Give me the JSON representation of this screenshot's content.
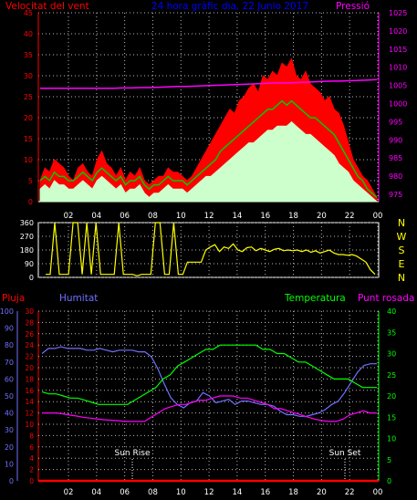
{
  "colors": {
    "background": "#000000",
    "grid": "#b8b8b8",
    "wind_speed": "#ff0000",
    "wind_avg": "#00cc00",
    "wind_min": "#ccffcc",
    "pressure": "#ff00ff",
    "direction": "#ffff00",
    "rain": "#ff0000",
    "humidity": "#7070ff",
    "temperature": "#00ff00",
    "dew_point": "#ff00ff",
    "sun_marker": "#ffffff",
    "text_title": "#0000ff",
    "text_left_red": "#ff0000",
    "text_right_magenta": "#ff00ff",
    "text_dir": "#ffff00"
  },
  "chart_data": [
    {
      "type": "area",
      "id": "wind",
      "title": "24 hora gràfic dia, 22 Junio 2017",
      "left_axis_label": "Velocitat del vent",
      "right_axis_label": "Pressió",
      "x_tick_labels": [
        "02",
        "04",
        "06",
        "08",
        "10",
        "12",
        "14",
        "16",
        "18",
        "20",
        "22",
        "00"
      ],
      "y_left_ticks": [
        "45",
        "40",
        "35",
        "30",
        "25",
        "20",
        "15",
        "10",
        "5",
        "0"
      ],
      "y_left_range": [
        0,
        45
      ],
      "y_right_ticks": [
        "1025",
        "1020",
        "1015",
        "1010",
        "1005",
        "1000",
        "995",
        "990",
        "985",
        "980",
        "975"
      ],
      "y_right_range": [
        972.5,
        1025
      ],
      "grid": true,
      "series": [
        {
          "key": "gust",
          "values": [
            5,
            8,
            7,
            10,
            9,
            8,
            6,
            5,
            8,
            9,
            7,
            6,
            10,
            12,
            9,
            8,
            6,
            8,
            5,
            7,
            6,
            8,
            5,
            4,
            5,
            6,
            6,
            8,
            7,
            7,
            6,
            5,
            6,
            8,
            10,
            12,
            14,
            16,
            18,
            20,
            22,
            21,
            24,
            25,
            27,
            28,
            26,
            30,
            29,
            31,
            30,
            33,
            32,
            34,
            30,
            29,
            31,
            28,
            27,
            26,
            24,
            25,
            22,
            21,
            18,
            14,
            10,
            8,
            6,
            5,
            3,
            1
          ]
        },
        {
          "key": "average",
          "values": [
            5,
            6,
            5,
            7,
            6,
            6,
            5,
            5,
            6,
            7,
            6,
            5,
            7,
            8,
            7,
            6,
            5,
            6,
            4,
            5,
            5,
            6,
            4,
            3,
            4,
            4,
            5,
            6,
            5,
            5,
            5,
            4,
            5,
            6,
            7,
            8,
            9,
            10,
            12,
            13,
            14,
            15,
            16,
            17,
            18,
            19,
            20,
            21,
            22,
            22,
            23,
            24,
            23,
            24,
            23,
            22,
            21,
            20,
            20,
            19,
            18,
            17,
            16,
            14,
            12,
            10,
            8,
            6,
            5,
            3,
            2,
            1
          ]
        },
        {
          "key": "min_wind",
          "values": [
            3,
            4,
            3,
            5,
            4,
            4,
            3,
            3,
            4,
            5,
            4,
            3,
            5,
            6,
            5,
            4,
            3,
            4,
            2,
            3,
            3,
            4,
            2,
            1,
            2,
            2,
            3,
            4,
            3,
            3,
            3,
            2,
            3,
            4,
            5,
            6,
            6,
            7,
            8,
            9,
            10,
            11,
            12,
            13,
            14,
            14,
            15,
            16,
            17,
            17,
            18,
            18,
            18,
            19,
            18,
            17,
            16,
            16,
            15,
            14,
            13,
            12,
            11,
            9,
            8,
            7,
            5,
            4,
            3,
            2,
            1,
            0
          ]
        },
        {
          "key": "pressure",
          "values": [
            1004,
            1004,
            1004,
            1004,
            1004,
            1004,
            1004,
            1004,
            1004,
            1004.1,
            1004.1,
            1004.2,
            1004.2,
            1004.3,
            1004.4,
            1004.5,
            1004.5,
            1004.6,
            1004.7,
            1004.8,
            1004.9,
            1005.0,
            1005.1,
            1005.2,
            1005.3,
            1005.4,
            1005.5,
            1005.5,
            1005.6,
            1005.7,
            1005.8,
            1005.9,
            1006.0,
            1006.0,
            1006.1,
            1006.2,
            1006.3,
            1006.4
          ]
        }
      ]
    },
    {
      "type": "line",
      "id": "direction",
      "y_left_ticks": [
        "360",
        "270",
        "180",
        "90",
        "0"
      ],
      "y_range": [
        0,
        360
      ],
      "compass_labels": [
        "N",
        "W",
        "S",
        "E",
        "N"
      ],
      "grid": true,
      "series": [
        {
          "key": "direction",
          "values": [
            20,
            20,
            360,
            20,
            20,
            20,
            360,
            360,
            20,
            360,
            20,
            360,
            20,
            20,
            20,
            20,
            360,
            20,
            20,
            20,
            10,
            20,
            20,
            20,
            360,
            360,
            20,
            20,
            360,
            20,
            20,
            100,
            100,
            100,
            100,
            180,
            200,
            215,
            170,
            200,
            190,
            220,
            180,
            170,
            195,
            200,
            175,
            190,
            180,
            170,
            185,
            190,
            175,
            180,
            175,
            180,
            170,
            180,
            165,
            175,
            160,
            170,
            180,
            160,
            150,
            150,
            145,
            150,
            140,
            120,
            100,
            50,
            20
          ]
        }
      ]
    },
    {
      "type": "line",
      "id": "climate",
      "labels_top": [
        "Pluja",
        "Humitat",
        "Temperatura",
        "Punt rosada"
      ],
      "x_tick_labels": [
        "02",
        "04",
        "06",
        "08",
        "10",
        "12",
        "14",
        "16",
        "18",
        "20",
        "22",
        "00"
      ],
      "humidity_ticks": [
        "100",
        "90",
        "80",
        "70",
        "60",
        "50",
        "40",
        "30",
        "20",
        "10",
        "0"
      ],
      "humidity_range": [
        0,
        100
      ],
      "rain_ticks": [
        "30",
        "28",
        "26",
        "24",
        "22",
        "20",
        "18",
        "16",
        "14",
        "12",
        "10",
        "8",
        "6",
        "4",
        "2",
        "0"
      ],
      "rain_range": [
        0,
        30
      ],
      "temp_ticks": [
        "40",
        "35",
        "30",
        "25",
        "20",
        "15",
        "10",
        "5",
        "0"
      ],
      "temp_range": [
        0,
        40
      ],
      "sun_rise_label": "Sun Rise",
      "sun_set_label": "Sun Set",
      "grid": true,
      "series": [
        {
          "key": "rain",
          "values": [
            0,
            0,
            0,
            0,
            0,
            0,
            0,
            0,
            0,
            0,
            0,
            0,
            0,
            0,
            0,
            0,
            0,
            0,
            0,
            0,
            0,
            0,
            0,
            0,
            0,
            0,
            0,
            0,
            0,
            0,
            0,
            0,
            0,
            0,
            0,
            0,
            0,
            0
          ]
        },
        {
          "key": "humidity",
          "values": [
            75,
            78,
            78,
            79,
            78,
            78,
            78,
            77,
            77,
            78,
            77,
            76,
            77,
            77,
            77,
            76,
            76,
            73,
            66,
            57,
            49,
            45,
            43,
            46,
            47,
            52,
            50,
            46,
            47,
            48,
            45,
            47,
            47,
            46,
            45,
            45,
            44,
            41,
            39,
            39,
            38,
            38,
            39,
            40,
            42,
            45,
            47,
            52,
            58,
            64,
            68,
            69,
            69
          ]
        },
        {
          "key": "temperature",
          "values": [
            21,
            20.5,
            20.5,
            20,
            19.5,
            19.5,
            19,
            18.5,
            18,
            18,
            18,
            18,
            18,
            19,
            20,
            21,
            22,
            24,
            25,
            27,
            28,
            29,
            30,
            31,
            31,
            32,
            32,
            32,
            32,
            32,
            32,
            31,
            31,
            30,
            30,
            29,
            28,
            28,
            27,
            26,
            25,
            24,
            24,
            24,
            23,
            22,
            22,
            22
          ]
        },
        {
          "key": "dew_point",
          "values": [
            16,
            16,
            16,
            15.8,
            15.5,
            15.3,
            15,
            14.8,
            14.6,
            14.4,
            14.3,
            14.2,
            14,
            14,
            14,
            14,
            15,
            16,
            17,
            17.5,
            18,
            18,
            18.5,
            19,
            19,
            19.5,
            20,
            20,
            20,
            19.5,
            19.5,
            19,
            18.5,
            18,
            17,
            17,
            16.5,
            16,
            15.5,
            15,
            14.5,
            14.2,
            14,
            14,
            14.5,
            15.5,
            16,
            16.5,
            16,
            16
          ]
        }
      ]
    }
  ]
}
